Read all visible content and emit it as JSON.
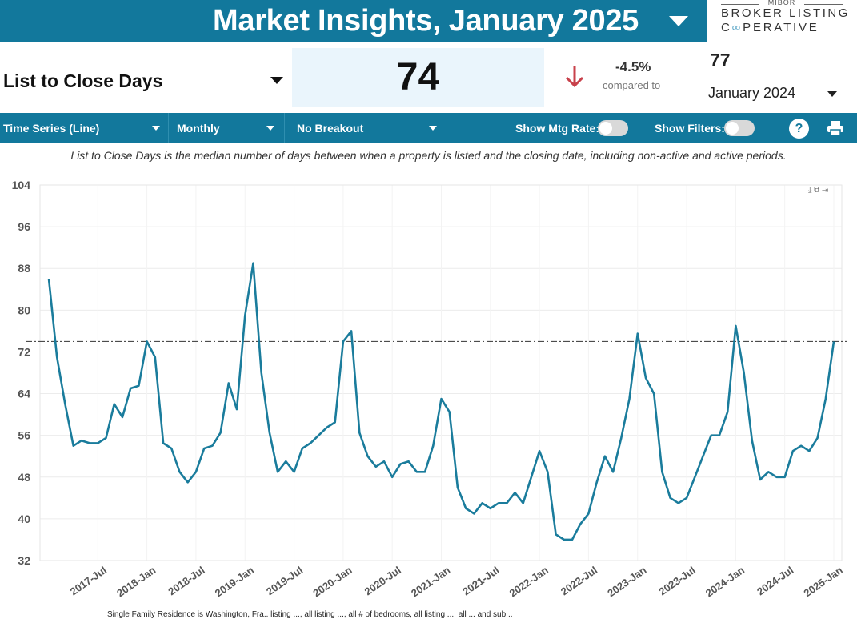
{
  "header": {
    "title": "Market Insights, January 2025",
    "logo_top": "MIBOR",
    "logo_line1": "BROKER LISTING",
    "logo_line2_a": "C",
    "logo_line2_inf": "∞",
    "logo_line2_b": "PERATIVE"
  },
  "metric": {
    "name": "List to Close Days",
    "value": "74",
    "change_pct": "-4.5%",
    "compared_label": "compared to",
    "previous_value": "77",
    "previous_period": "January 2024",
    "change_direction": "down",
    "change_color": "#c8414b"
  },
  "toolbar": {
    "chart_type": "Time Series (Line)",
    "frequency": "Monthly",
    "breakout": "No Breakout",
    "mtg_rate_label": "Show Mtg Rate:",
    "mtg_rate_on": false,
    "filters_label": "Show Filters:",
    "filters_on": false,
    "help": "?"
  },
  "description": "List to Close Days is the median number of days between when a property is listed and the closing date, including non-active and active periods.",
  "footer_fragment": "Single Family Residence is Washington, Fra.. listing ..., all listing ..., all # of bedrooms, all listing ..., all ... and sub...",
  "colors": {
    "brand": "#12789c",
    "line": "#1a7c9c"
  },
  "chart_data": {
    "type": "line",
    "title": "",
    "xlabel": "",
    "ylabel": "",
    "ylim": [
      32,
      104
    ],
    "yticks": [
      32,
      40,
      48,
      56,
      64,
      72,
      80,
      88,
      96,
      104
    ],
    "x_start": "2017-Jan",
    "x_tick_labels": [
      "2017-Jul",
      "2018-Jan",
      "2018-Jul",
      "2019-Jan",
      "2019-Jul",
      "2020-Jan",
      "2020-Jul",
      "2021-Jan",
      "2021-Jul",
      "2022-Jan",
      "2022-Jul",
      "2023-Jan",
      "2023-Jul",
      "2024-Jan",
      "2024-Jul",
      "2025-Jan"
    ],
    "reference_line": 74,
    "grid": true,
    "series": [
      {
        "values": [
          86,
          71,
          62,
          54,
          55,
          54.5,
          54.5,
          55.5,
          62,
          59.5,
          65,
          65.5,
          74,
          71,
          54.5,
          53.5,
          49,
          47,
          49,
          53.5,
          54,
          56.5,
          66,
          61,
          79,
          89,
          68,
          56.5,
          49,
          51,
          49,
          53.5,
          54.5,
          56,
          57.5,
          58.5,
          74,
          76,
          56.5,
          52,
          50,
          51,
          48,
          50.5,
          51,
          49,
          49,
          54,
          63,
          60.5,
          46,
          42,
          41,
          43,
          42,
          43,
          43,
          45,
          43,
          48,
          53,
          49,
          37,
          36,
          36,
          39,
          41,
          47,
          52,
          49,
          55.5,
          63,
          75.5,
          67,
          64,
          49,
          44,
          43,
          44,
          48,
          52,
          56,
          56,
          60.5,
          77,
          68,
          55,
          47.5,
          49,
          48,
          48,
          53,
          54,
          53,
          55.5,
          63,
          74
        ]
      }
    ]
  }
}
